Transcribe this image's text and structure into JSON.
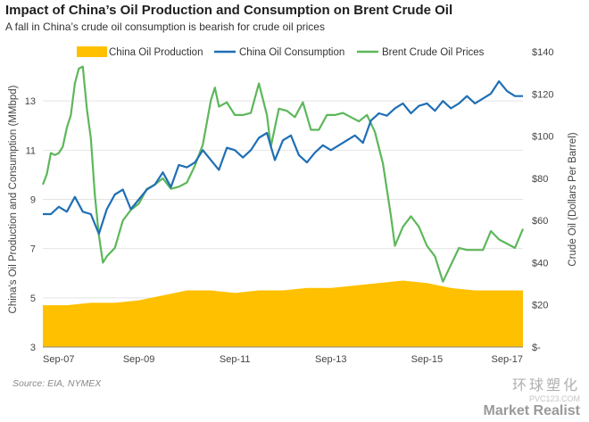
{
  "header": {
    "title": "Impact of China’s Oil Production and Consumption on Brent Crude Oil",
    "subtitle": "A fall in China’s crude oil consumption is bearish for crude oil prices"
  },
  "footer": {
    "source": "Source: EIA, NYMEX",
    "watermark_cn": "环球塑化",
    "watermark_url": "PVC123.COM",
    "watermark_brand": "Market Realist"
  },
  "colors": {
    "production": "#FFC000",
    "consumption": "#1F6FB5",
    "brent": "#5DB75B",
    "grid": "#e4e4e4"
  },
  "chart_data": {
    "type": "line",
    "x_tick_labels": [
      "Sep-07",
      "Sep-09",
      "Sep-11",
      "Sep-13",
      "Sep-15",
      "Sep-17"
    ],
    "x_range": [
      "2007-09",
      "2017-09"
    ],
    "ylabel_left": "China's Oil Production and Consumption (MMbpd)",
    "ylabel_right": "Crude Oil (Dollars Per Barrel)",
    "ylim_left": [
      3,
      15
    ],
    "yticks_left": [
      "3",
      "5",
      "7",
      "9",
      "11",
      "13"
    ],
    "ylim_right": [
      0,
      140
    ],
    "yticks_right": [
      "$-",
      "$20",
      "$40",
      "$60",
      "$80",
      "$100",
      "$120",
      "$140"
    ],
    "legend_position": "top",
    "series": [
      {
        "name": "China Oil Production",
        "type": "area",
        "axis": "left",
        "x": [
          "2007-09",
          "2008-03",
          "2008-09",
          "2009-03",
          "2009-09",
          "2010-03",
          "2010-09",
          "2011-03",
          "2011-09",
          "2012-03",
          "2012-09",
          "2013-03",
          "2013-09",
          "2014-03",
          "2014-09",
          "2015-03",
          "2015-09",
          "2016-03",
          "2016-09",
          "2017-03",
          "2017-09"
        ],
        "values": [
          4.7,
          4.7,
          4.8,
          4.8,
          4.9,
          5.1,
          5.3,
          5.3,
          5.2,
          5.3,
          5.3,
          5.4,
          5.4,
          5.5,
          5.6,
          5.7,
          5.6,
          5.4,
          5.3,
          5.3,
          5.3
        ]
      },
      {
        "name": "China Oil Consumption",
        "type": "line",
        "axis": "left",
        "x": [
          "2007-09",
          "2007-11",
          "2008-01",
          "2008-03",
          "2008-05",
          "2008-07",
          "2008-09",
          "2008-11",
          "2009-01",
          "2009-03",
          "2009-05",
          "2009-07",
          "2009-09",
          "2009-11",
          "2010-01",
          "2010-03",
          "2010-05",
          "2010-07",
          "2010-09",
          "2010-11",
          "2011-01",
          "2011-03",
          "2011-05",
          "2011-07",
          "2011-09",
          "2011-11",
          "2012-01",
          "2012-03",
          "2012-05",
          "2012-07",
          "2012-09",
          "2012-11",
          "2013-01",
          "2013-03",
          "2013-05",
          "2013-07",
          "2013-09",
          "2013-11",
          "2014-01",
          "2014-03",
          "2014-05",
          "2014-07",
          "2014-09",
          "2014-11",
          "2015-01",
          "2015-03",
          "2015-05",
          "2015-07",
          "2015-09",
          "2015-11",
          "2016-01",
          "2016-03",
          "2016-05",
          "2016-07",
          "2016-09",
          "2016-11",
          "2017-01",
          "2017-03",
          "2017-05",
          "2017-07",
          "2017-09"
        ],
        "values": [
          8.4,
          8.4,
          8.7,
          8.5,
          9.1,
          8.5,
          8.4,
          7.6,
          8.6,
          9.2,
          9.4,
          8.6,
          9.0,
          9.4,
          9.6,
          10.1,
          9.5,
          10.4,
          10.3,
          10.5,
          11.0,
          10.6,
          10.2,
          11.1,
          11.0,
          10.7,
          11.0,
          11.5,
          11.7,
          10.6,
          11.4,
          11.6,
          10.8,
          10.5,
          10.9,
          11.2,
          11.0,
          11.2,
          11.4,
          11.6,
          11.3,
          12.2,
          12.5,
          12.4,
          12.7,
          12.9,
          12.5,
          12.8,
          12.9,
          12.6,
          13.0,
          12.7,
          12.9,
          13.2,
          12.9,
          13.1,
          13.3,
          13.8,
          13.4,
          13.2,
          13.2
        ]
      },
      {
        "name": "Brent Crude Oil Prices",
        "type": "line",
        "axis": "right",
        "x": [
          "2007-09",
          "2007-10",
          "2007-11",
          "2007-12",
          "2008-01",
          "2008-02",
          "2008-03",
          "2008-04",
          "2008-05",
          "2008-06",
          "2008-07",
          "2008-08",
          "2008-09",
          "2008-10",
          "2008-11",
          "2008-12",
          "2009-01",
          "2009-03",
          "2009-05",
          "2009-07",
          "2009-09",
          "2009-11",
          "2010-01",
          "2010-03",
          "2010-05",
          "2010-07",
          "2010-09",
          "2010-11",
          "2011-01",
          "2011-03",
          "2011-04",
          "2011-05",
          "2011-07",
          "2011-09",
          "2011-11",
          "2012-01",
          "2012-03",
          "2012-05",
          "2012-06",
          "2012-08",
          "2012-10",
          "2012-12",
          "2013-02",
          "2013-04",
          "2013-06",
          "2013-08",
          "2013-10",
          "2013-12",
          "2014-02",
          "2014-04",
          "2014-06",
          "2014-08",
          "2014-10",
          "2014-12",
          "2015-01",
          "2015-03",
          "2015-05",
          "2015-07",
          "2015-09",
          "2015-11",
          "2016-01",
          "2016-03",
          "2016-05",
          "2016-07",
          "2016-09",
          "2016-11",
          "2017-01",
          "2017-03",
          "2017-05",
          "2017-07",
          "2017-09"
        ],
        "values": [
          77,
          82,
          92,
          91,
          92,
          95,
          104,
          110,
          125,
          132,
          133,
          113,
          99,
          72,
          53,
          40,
          43,
          47,
          60,
          65,
          68,
          75,
          77,
          80,
          75,
          76,
          78,
          86,
          96,
          117,
          123,
          114,
          116,
          110,
          110,
          111,
          125,
          110,
          95,
          113,
          112,
          109,
          116,
          103,
          103,
          110,
          110,
          111,
          109,
          107,
          110,
          102,
          87,
          62,
          48,
          57,
          62,
          57,
          48,
          43,
          31,
          39,
          47,
          46,
          46,
          46,
          55,
          51,
          49,
          47,
          56
        ]
      }
    ]
  }
}
